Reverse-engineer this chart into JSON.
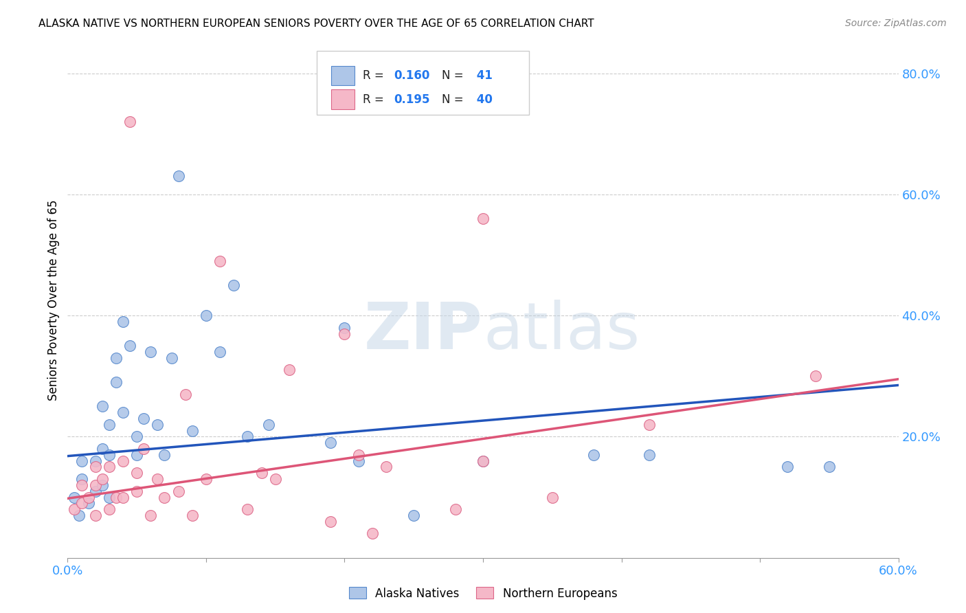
{
  "title": "ALASKA NATIVE VS NORTHERN EUROPEAN SENIORS POVERTY OVER THE AGE OF 65 CORRELATION CHART",
  "source": "Source: ZipAtlas.com",
  "ylabel": "Seniors Poverty Over the Age of 65",
  "xlim": [
    0,
    0.6
  ],
  "ylim": [
    0,
    0.85
  ],
  "xticks": [
    0.0,
    0.1,
    0.2,
    0.3,
    0.4,
    0.5,
    0.6
  ],
  "xticklabels": [
    "0.0%",
    "",
    "",
    "",
    "",
    "",
    "60.0%"
  ],
  "yticks_right": [
    0.0,
    0.2,
    0.4,
    0.6,
    0.8
  ],
  "ytick_right_labels": [
    "",
    "20.0%",
    "40.0%",
    "60.0%",
    "80.0%"
  ],
  "alaska_R": 0.16,
  "alaska_N": 41,
  "northern_R": 0.195,
  "northern_N": 40,
  "alaska_color": "#aec6e8",
  "alaska_edge": "#5588cc",
  "northern_color": "#f5b8c8",
  "northern_edge": "#dd6688",
  "alaska_line_color": "#2255bb",
  "northern_line_color": "#dd5577",
  "alaska_trend_y0": 0.168,
  "alaska_trend_y1": 0.285,
  "northern_trend_y0": 0.098,
  "northern_trend_y1": 0.295,
  "trend_x": [
    0.0,
    0.6
  ],
  "alaska_x": [
    0.005,
    0.008,
    0.01,
    0.01,
    0.015,
    0.02,
    0.02,
    0.025,
    0.025,
    0.025,
    0.03,
    0.03,
    0.03,
    0.035,
    0.035,
    0.04,
    0.04,
    0.045,
    0.05,
    0.05,
    0.055,
    0.06,
    0.065,
    0.07,
    0.075,
    0.08,
    0.09,
    0.1,
    0.11,
    0.12,
    0.13,
    0.145,
    0.19,
    0.2,
    0.21,
    0.25,
    0.3,
    0.38,
    0.42,
    0.52,
    0.55
  ],
  "alaska_y": [
    0.1,
    0.07,
    0.13,
    0.16,
    0.09,
    0.11,
    0.16,
    0.12,
    0.18,
    0.25,
    0.1,
    0.17,
    0.22,
    0.29,
    0.33,
    0.24,
    0.39,
    0.35,
    0.2,
    0.17,
    0.23,
    0.34,
    0.22,
    0.17,
    0.33,
    0.63,
    0.21,
    0.4,
    0.34,
    0.45,
    0.2,
    0.22,
    0.19,
    0.38,
    0.16,
    0.07,
    0.16,
    0.17,
    0.17,
    0.15,
    0.15
  ],
  "northern_x": [
    0.005,
    0.01,
    0.01,
    0.015,
    0.02,
    0.02,
    0.02,
    0.025,
    0.03,
    0.03,
    0.035,
    0.04,
    0.04,
    0.045,
    0.05,
    0.05,
    0.055,
    0.06,
    0.065,
    0.07,
    0.08,
    0.085,
    0.09,
    0.1,
    0.11,
    0.13,
    0.14,
    0.15,
    0.16,
    0.19,
    0.2,
    0.21,
    0.22,
    0.23,
    0.28,
    0.3,
    0.3,
    0.35,
    0.42,
    0.54
  ],
  "northern_y": [
    0.08,
    0.09,
    0.12,
    0.1,
    0.07,
    0.12,
    0.15,
    0.13,
    0.08,
    0.15,
    0.1,
    0.1,
    0.16,
    0.72,
    0.14,
    0.11,
    0.18,
    0.07,
    0.13,
    0.1,
    0.11,
    0.27,
    0.07,
    0.13,
    0.49,
    0.08,
    0.14,
    0.13,
    0.31,
    0.06,
    0.37,
    0.17,
    0.04,
    0.15,
    0.08,
    0.16,
    0.56,
    0.1,
    0.22,
    0.3
  ]
}
